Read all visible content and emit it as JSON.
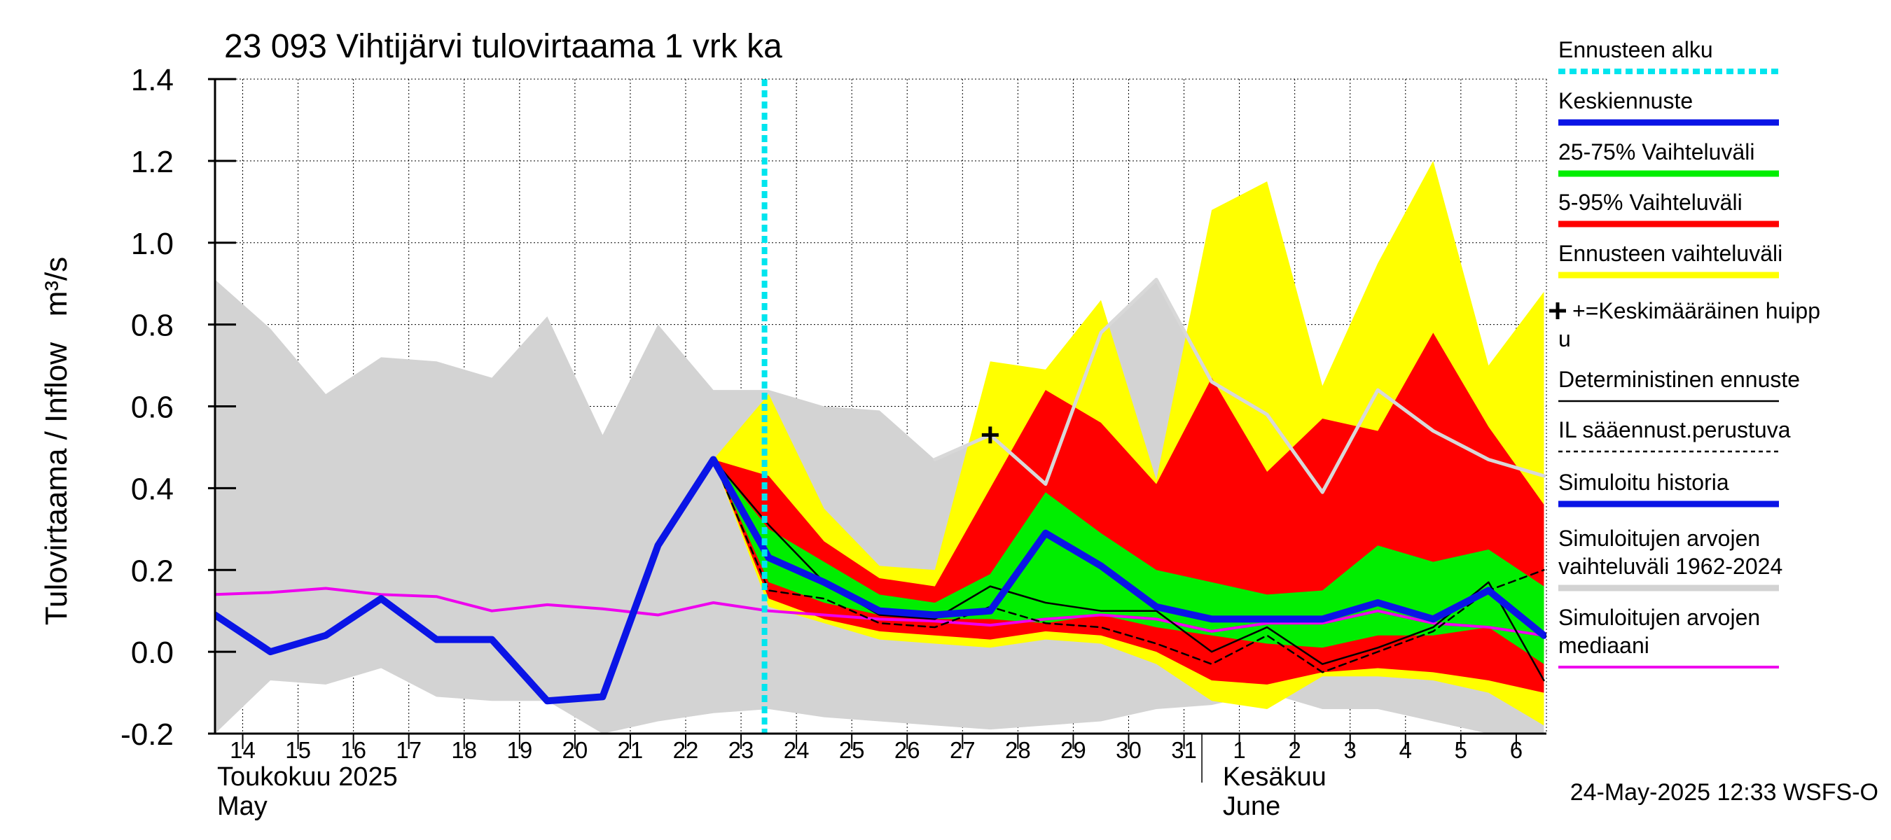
{
  "chart_data": {
    "type": "area",
    "title": "23 093 Vihtijärvi tulovirtaama 1 vrk ka",
    "ylabel": "Tulovirtaama / Inflow   m³/s",
    "ylim": [
      -0.2,
      1.4
    ],
    "yticks": [
      -0.2,
      0.0,
      0.2,
      0.4,
      0.6,
      0.8,
      1.0,
      1.2,
      1.4
    ],
    "ytick_labels": [
      "-0.2",
      "0.0",
      "0.2",
      "0.4",
      "0.6",
      "0.8",
      "1.0",
      "1.2",
      "1.4"
    ],
    "grid": true,
    "x_days": [
      "14",
      "15",
      "16",
      "17",
      "18",
      "19",
      "20",
      "21",
      "22",
      "23",
      "24",
      "25",
      "26",
      "27",
      "28",
      "29",
      "30",
      "31",
      "1",
      "2",
      "3",
      "4",
      "5",
      "6"
    ],
    "month_labels": [
      {
        "line1": "Toukokuu  2025",
        "line2": "May",
        "day_index": 0
      },
      {
        "line1": "Kesäkuu",
        "line2": "June",
        "day_index": 18
      }
    ],
    "forecast_start_index": 10,
    "footer": "24-May-2025 12:33 WSFS-O",
    "legend_position": "right",
    "legend": [
      {
        "label": "Ennusteen alku",
        "color": "#00e5ee",
        "style": "dotted"
      },
      {
        "label": "Keskiennuste",
        "color": "#0a14e6",
        "style": "thick"
      },
      {
        "label": "25-75% Vaihteluväli",
        "color": "#00ee00",
        "style": "thick"
      },
      {
        "label": "5-95% Vaihteluväli",
        "color": "#ff0000",
        "style": "thick"
      },
      {
        "label": "Ennusteen vaihteluväli",
        "color": "#ffff00",
        "style": "thick"
      },
      {
        "label": "+=Keskimääräinen huipp",
        "label2": "u",
        "color": "#000000",
        "style": "plus"
      },
      {
        "label": "Deterministinen ennuste",
        "color": "#000000",
        "style": "thin"
      },
      {
        "label": "IL sääennust.perustuva",
        "color": "#000000",
        "style": "dashed"
      },
      {
        "label": "Simuloitu historia",
        "color": "#0a14e6",
        "style": "thick"
      },
      {
        "label": "Simuloitujen arvojen",
        "label2": "vaihteluväli 1962-2024",
        "color": "#d3d3d3",
        "style": "thick"
      },
      {
        "label": "Simuloitujen arvojen",
        "label2": "mediaani",
        "color": "#ee00ee",
        "style": "thin"
      }
    ],
    "colors": {
      "hist_range": "#d3d3d3",
      "forecast_range": "#ffff00",
      "p5_95": "#ff0000",
      "p25_75": "#00ee00",
      "mean_forecast": "#0a14e6",
      "median": "#ee00ee",
      "forecast_start": "#00e5ee",
      "hist_peak_line": "#d8d8d8"
    },
    "series": {
      "hist_range": {
        "x": [
          0,
          1,
          2,
          3,
          4,
          5,
          6,
          7,
          8,
          9,
          10,
          11,
          12,
          13,
          14,
          15,
          16,
          17,
          18,
          19,
          20,
          21,
          22,
          23,
          24,
          24,
          23,
          22,
          21,
          20,
          19,
          18,
          17,
          16,
          15,
          14,
          13,
          12,
          11,
          10,
          9,
          8,
          7,
          6,
          5,
          4,
          3,
          2,
          1,
          0
        ],
        "y": [
          0.91,
          0.79,
          0.63,
          0.72,
          0.71,
          0.67,
          0.82,
          0.53,
          0.8,
          0.64,
          0.64,
          0.6,
          0.59,
          0.47,
          0.53,
          0.43,
          0.78,
          0.91,
          0.66,
          0.58,
          0.39,
          0.64,
          0.54,
          0.47,
          0.43,
          -0.2,
          -0.2,
          -0.17,
          -0.14,
          -0.14,
          -0.1,
          -0.13,
          -0.14,
          -0.17,
          -0.18,
          -0.19,
          -0.18,
          -0.17,
          -0.16,
          -0.14,
          -0.15,
          -0.17,
          -0.2,
          -0.12,
          -0.12,
          -0.11,
          -0.04,
          -0.08,
          -0.07,
          -0.2
        ]
      },
      "forecast_range": {
        "x": [
          9,
          10,
          11,
          12,
          13,
          14,
          15,
          16,
          17,
          18,
          19,
          20,
          21,
          22,
          23,
          24,
          24,
          23,
          22,
          21,
          20,
          19,
          18,
          17,
          16,
          15,
          14,
          13,
          12,
          11,
          10,
          9
        ],
        "y": [
          0.47,
          0.63,
          0.35,
          0.21,
          0.2,
          0.71,
          0.69,
          0.86,
          0.42,
          1.08,
          1.15,
          0.65,
          0.95,
          1.2,
          0.7,
          0.88,
          -0.18,
          -0.1,
          -0.07,
          -0.06,
          -0.06,
          -0.14,
          -0.12,
          -0.03,
          0.02,
          0.03,
          0.01,
          0.02,
          0.03,
          0.07,
          0.11,
          0.47
        ]
      },
      "p5_95": {
        "x": [
          9,
          10,
          11,
          12,
          13,
          14,
          15,
          16,
          17,
          18,
          19,
          20,
          21,
          22,
          23,
          24,
          24,
          23,
          22,
          21,
          20,
          19,
          18,
          17,
          16,
          15,
          14,
          13,
          12,
          11,
          10,
          9
        ],
        "y": [
          0.47,
          0.43,
          0.27,
          0.18,
          0.16,
          0.4,
          0.64,
          0.56,
          0.41,
          0.67,
          0.44,
          0.57,
          0.54,
          0.78,
          0.55,
          0.36,
          -0.1,
          -0.07,
          -0.05,
          -0.04,
          -0.05,
          -0.08,
          -0.07,
          0.0,
          0.04,
          0.05,
          0.03,
          0.04,
          0.05,
          0.08,
          0.13,
          0.47
        ]
      },
      "p25_75": {
        "x": [
          9,
          10,
          11,
          12,
          13,
          14,
          15,
          16,
          17,
          18,
          19,
          20,
          21,
          22,
          23,
          24,
          24,
          23,
          22,
          21,
          20,
          19,
          18,
          17,
          16,
          15,
          14,
          13,
          12,
          11,
          10,
          9
        ],
        "y": [
          0.47,
          0.3,
          0.22,
          0.14,
          0.12,
          0.19,
          0.39,
          0.29,
          0.2,
          0.17,
          0.14,
          0.15,
          0.26,
          0.22,
          0.25,
          0.16,
          -0.03,
          0.06,
          0.04,
          0.04,
          0.01,
          0.02,
          0.04,
          0.06,
          0.09,
          0.07,
          0.08,
          0.08,
          0.09,
          0.12,
          0.17,
          0.47
        ]
      },
      "simulated_history": {
        "x": [
          0,
          1,
          2,
          3,
          4,
          5,
          6,
          7,
          8,
          9,
          10
        ],
        "y": [
          0.09,
          0.0,
          0.04,
          0.13,
          0.03,
          0.03,
          -0.12,
          -0.11,
          0.26,
          0.47,
          0.23
        ]
      },
      "mean_forecast": {
        "x": [
          10,
          11,
          12,
          13,
          14,
          15,
          16,
          17,
          18,
          19,
          20,
          21,
          22,
          23,
          24
        ],
        "y": [
          0.23,
          0.17,
          0.1,
          0.09,
          0.1,
          0.29,
          0.21,
          0.11,
          0.08,
          0.08,
          0.08,
          0.12,
          0.08,
          0.15,
          0.04
        ]
      },
      "deterministic": {
        "x": [
          9,
          10,
          11,
          12,
          13,
          14,
          15,
          16,
          17,
          18,
          19,
          20,
          21,
          22,
          23,
          24
        ],
        "y": [
          0.47,
          0.31,
          0.17,
          0.09,
          0.08,
          0.16,
          0.12,
          0.1,
          0.1,
          0.0,
          0.06,
          -0.03,
          0.01,
          0.06,
          0.17,
          -0.07
        ]
      },
      "il_forecast": {
        "x": [
          9,
          10,
          11,
          12,
          13,
          14,
          15,
          16,
          17,
          18,
          19,
          20,
          21,
          22,
          23,
          24
        ],
        "y": [
          0.47,
          0.15,
          0.13,
          0.07,
          0.06,
          0.11,
          0.07,
          0.06,
          0.02,
          -0.03,
          0.04,
          -0.05,
          0.0,
          0.05,
          0.15,
          0.2
        ]
      },
      "median": {
        "x": [
          0,
          1,
          2,
          3,
          4,
          5,
          6,
          7,
          8,
          9,
          10,
          11,
          12,
          13,
          14,
          15,
          16,
          17,
          18,
          19,
          20,
          21,
          22,
          23,
          24
        ],
        "y": [
          0.14,
          0.145,
          0.155,
          0.14,
          0.135,
          0.1,
          0.115,
          0.105,
          0.09,
          0.12,
          0.1,
          0.09,
          0.08,
          0.075,
          0.065,
          0.08,
          0.09,
          0.08,
          0.05,
          0.07,
          0.07,
          0.1,
          0.07,
          0.06,
          0.04
        ]
      },
      "hist_peak_line": {
        "x": [
          13,
          14,
          15,
          16,
          17,
          18,
          19,
          20,
          21,
          22,
          23,
          24
        ],
        "y": [
          0.47,
          0.53,
          0.41,
          0.78,
          0.91,
          0.66,
          0.58,
          0.39,
          0.64,
          0.54,
          0.47,
          0.43
        ]
      },
      "mean_peak": {
        "x": 14,
        "y": 0.53
      }
    }
  }
}
